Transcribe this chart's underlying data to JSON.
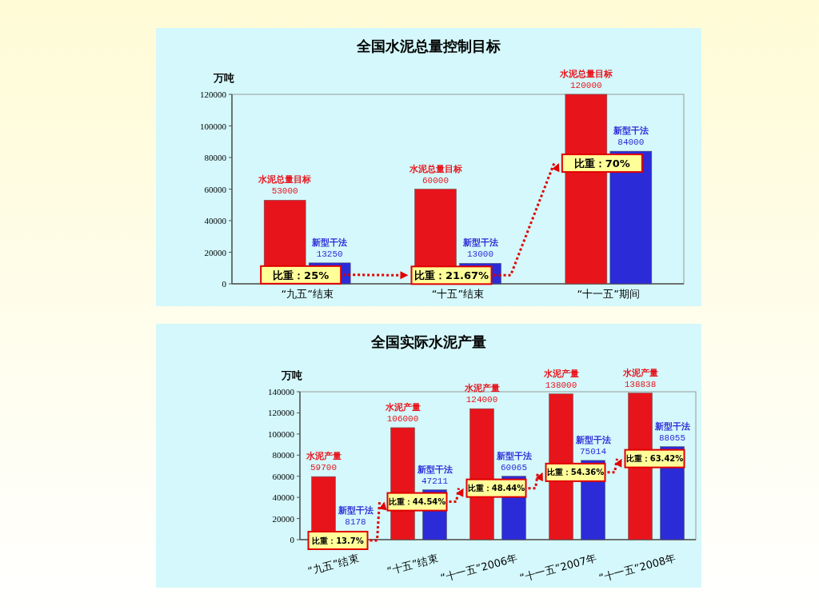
{
  "chart_data": [
    {
      "type": "bar",
      "title": "全国水泥总量控制目标",
      "ylabel": "万吨",
      "categories": [
        "“九五”结束",
        "“十五”结束",
        "“十一五”期间"
      ],
      "series": [
        {
          "name": "水泥总量目标",
          "color": "#e8141c",
          "values": [
            53000,
            60000,
            120000
          ]
        },
        {
          "name": "新型干法",
          "color": "#2b2bd8",
          "values": [
            13250,
            13000,
            84000
          ]
        }
      ],
      "ylim": [
        0,
        120000
      ],
      "yticks": [
        0,
        20000,
        40000,
        60000,
        80000,
        100000,
        120000
      ],
      "data_labels": true,
      "annotations": [
        {
          "text": "比重：25%",
          "x": "“九五”结束",
          "y": 13250
        },
        {
          "text": "比重：21.67%",
          "x": "“十五”结束",
          "y": 13000
        },
        {
          "text": "比重：70%",
          "x": "“十一五”期间",
          "y": 84000
        }
      ]
    },
    {
      "type": "bar",
      "title": "全国实际水泥产量",
      "ylabel": "万吨",
      "categories": [
        "“九五”结束",
        "“十五”结束",
        "“十一五”2006年",
        "“十一五”2007年",
        "“十一五”2008年"
      ],
      "series": [
        {
          "name": "水泥产量",
          "color": "#e8141c",
          "values": [
            59700,
            106000,
            124000,
            138000,
            138838
          ]
        },
        {
          "name": "新型干法",
          "color": "#2b2bd8",
          "values": [
            8178,
            47211,
            60065,
            75014,
            88055
          ]
        }
      ],
      "ylim": [
        0,
        140000
      ],
      "yticks": [
        0,
        20000,
        40000,
        60000,
        80000,
        100000,
        120000,
        140000
      ],
      "data_labels": true,
      "annotations": [
        {
          "text": "比重：13.7%",
          "x": "“九五”结束",
          "y": 8178
        },
        {
          "text": "比重：44.54%",
          "x": "“十五”结束",
          "y": 47211
        },
        {
          "text": "比重：48.44%",
          "x": "“十一五”2006年",
          "y": 60065
        },
        {
          "text": "比重：54.36%",
          "x": "“十一五”2007年",
          "y": 75014
        },
        {
          "text": "比重：63.42%",
          "x": "“十一五”2008年",
          "y": 88055
        }
      ]
    }
  ]
}
